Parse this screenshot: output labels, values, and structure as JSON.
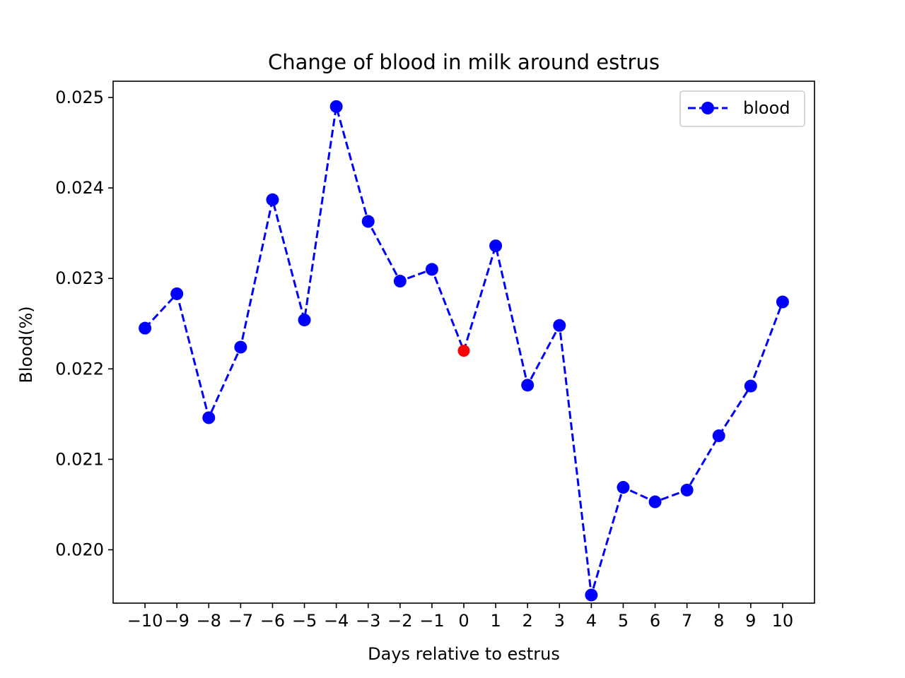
{
  "chart_data": {
    "type": "line",
    "title": "Change of blood in milk around estrus",
    "xlabel": "Days relative to estrus",
    "ylabel": "Blood(%)",
    "x": [
      -10,
      -9,
      -8,
      -7,
      -6,
      -5,
      -4,
      -3,
      -2,
      -1,
      0,
      1,
      2,
      3,
      4,
      5,
      6,
      7,
      8,
      9,
      10
    ],
    "x_tick_labels": [
      "−10",
      "−9",
      "−8",
      "−7",
      "−6",
      "−5",
      "−4",
      "−3",
      "−2",
      "−1",
      "0",
      "1",
      "2",
      "3",
      "4",
      "5",
      "6",
      "7",
      "8",
      "9",
      "10"
    ],
    "y_ticks": [
      0.02,
      0.021,
      0.022,
      0.023,
      0.024,
      0.025
    ],
    "y_tick_labels": [
      "0.020",
      "0.021",
      "0.022",
      "0.023",
      "0.024",
      "0.025"
    ],
    "xlim": [
      -11,
      11
    ],
    "ylim": [
      0.01941,
      0.02518
    ],
    "grid": false,
    "legend_position": "top-right",
    "series": [
      {
        "name": "blood",
        "line_style": "dashed",
        "marker": "circle",
        "color": "#0000ff",
        "values": [
          0.02245,
          0.02283,
          0.02146,
          0.02224,
          0.02387,
          0.02254,
          0.0249,
          0.02363,
          0.02297,
          0.0231,
          0.0222,
          0.02336,
          0.02182,
          0.02248,
          0.0195,
          0.02069,
          0.02053,
          0.02066,
          0.02126,
          0.02181,
          0.02274
        ]
      }
    ],
    "highlight": {
      "x": 0,
      "color": "#ff0000"
    }
  }
}
